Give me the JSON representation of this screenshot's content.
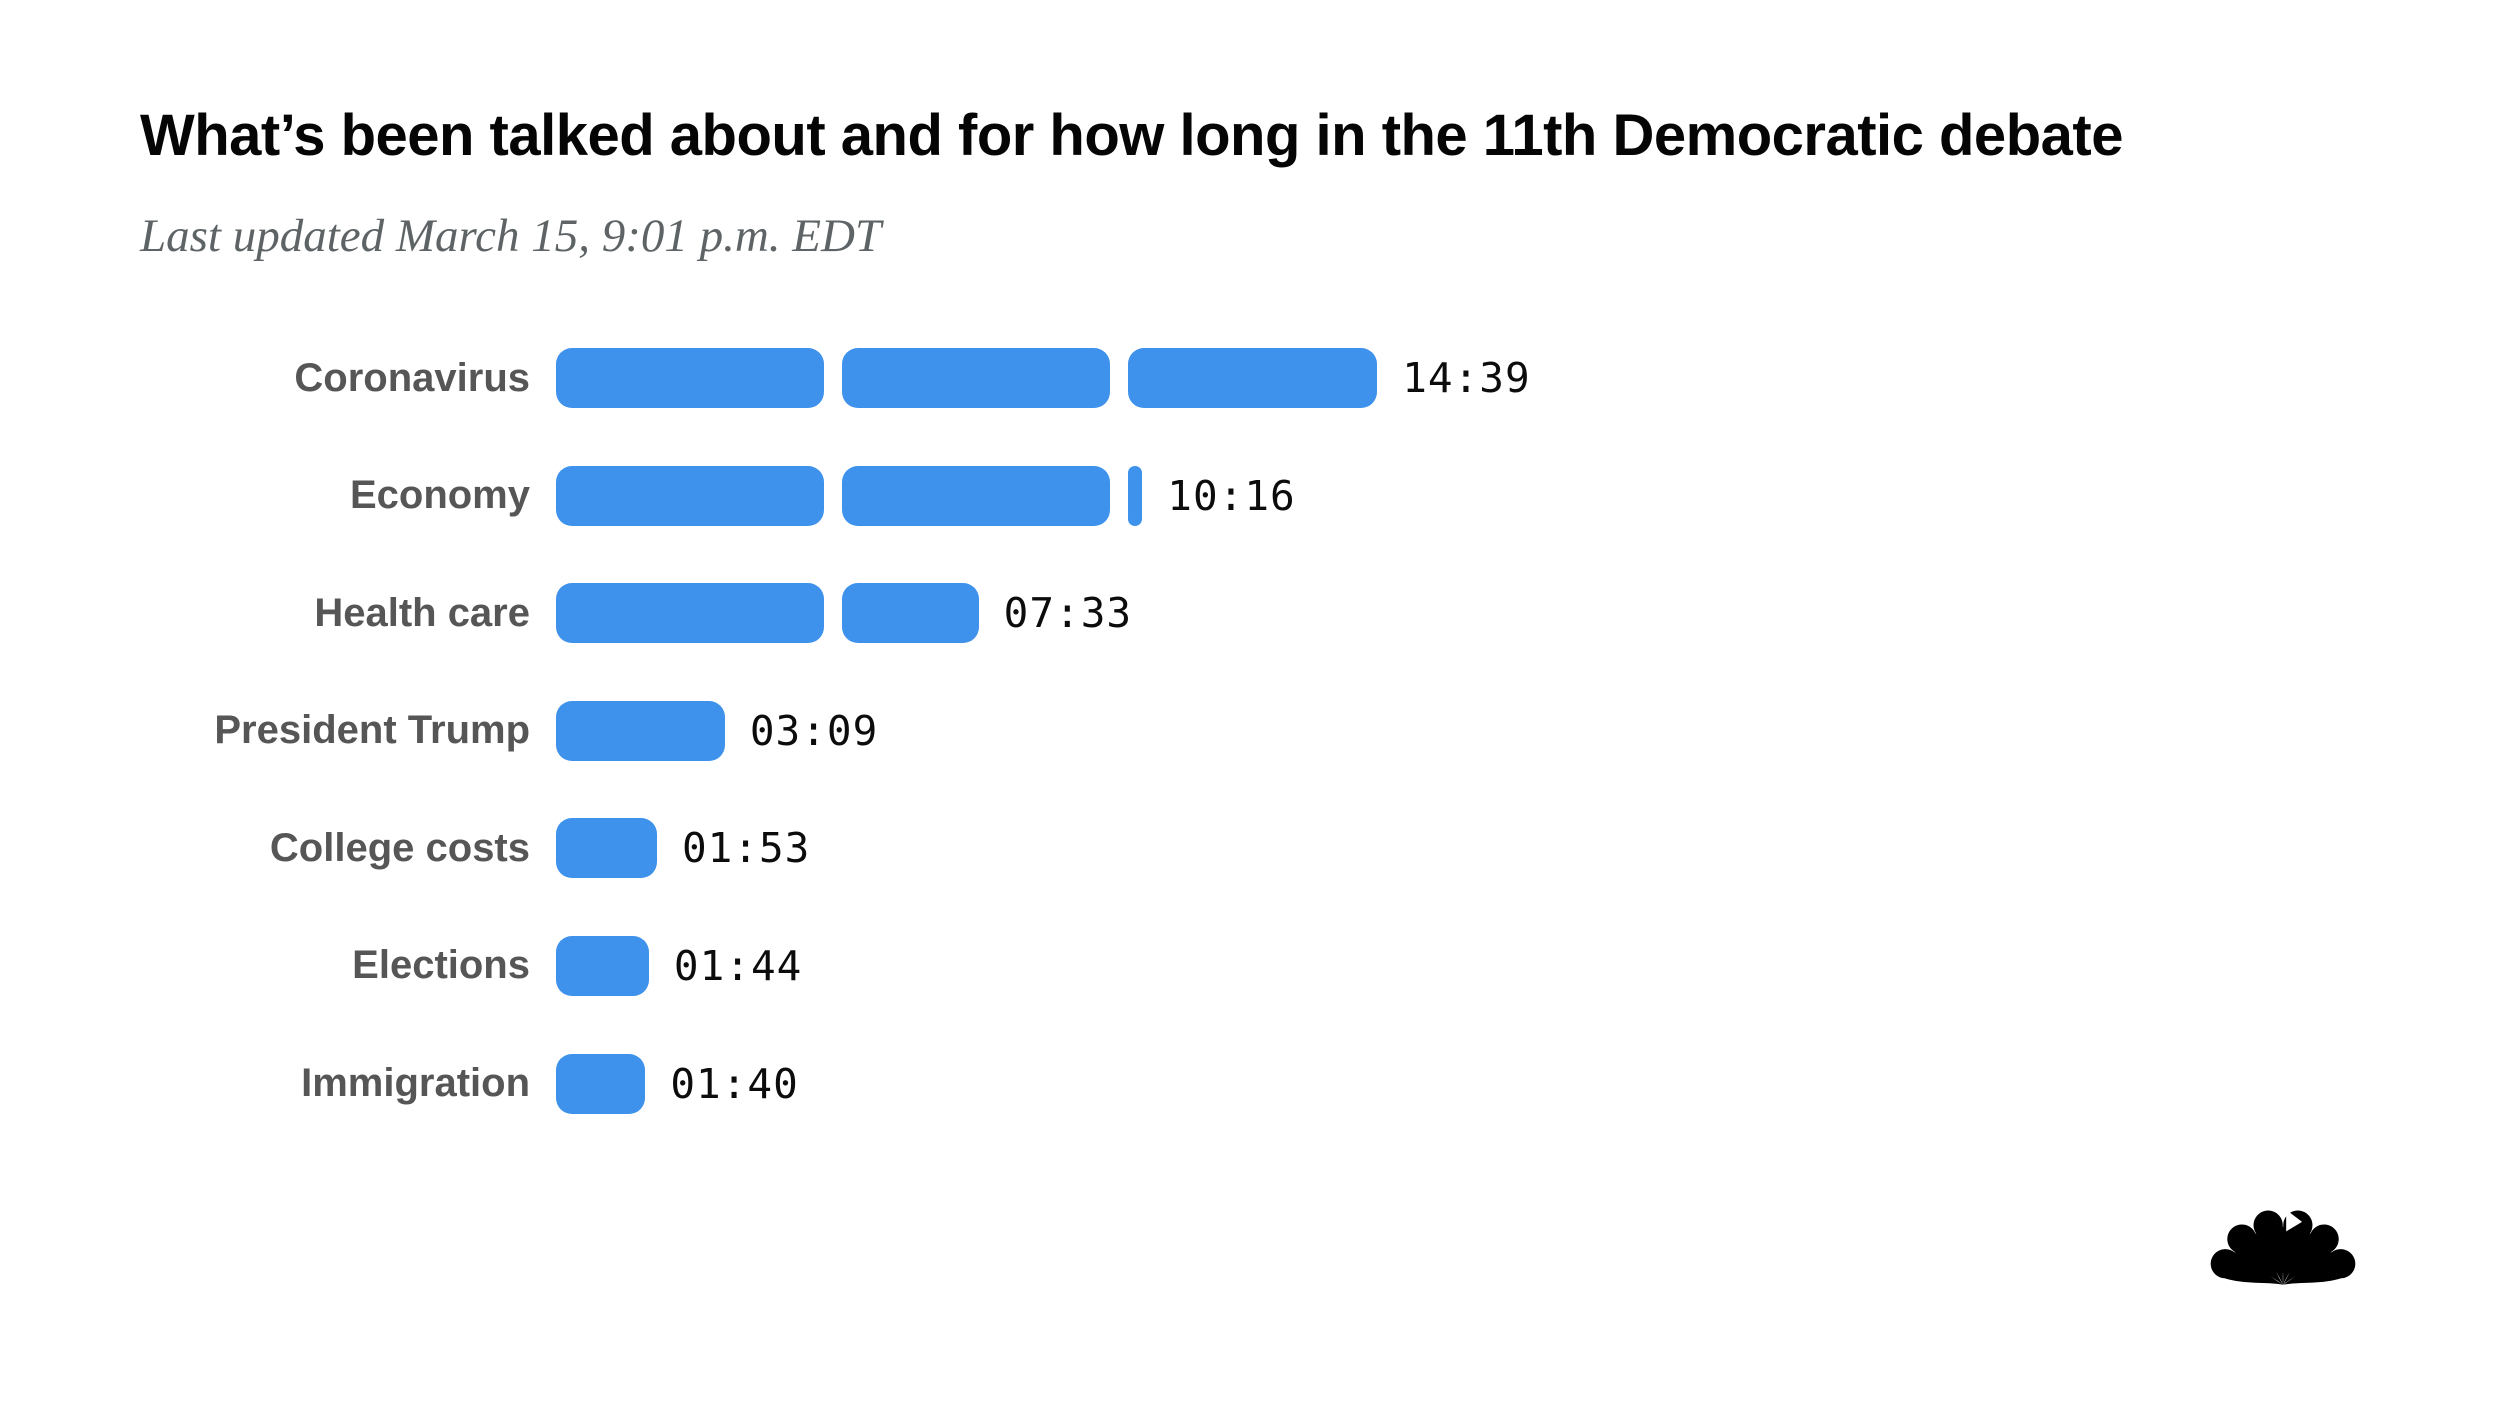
{
  "header": {
    "title": "What’s been talked about and for how long in the 11th Democratic debate",
    "subtitle": "Last updated March 15, 9:01 p.m. EDT"
  },
  "chart_data": {
    "type": "bar",
    "orientation": "horizontal",
    "title": "What’s been talked about and for how long in the 11th Democratic debate",
    "subtitle": "Last updated March 15, 9:01 p.m. EDT",
    "unit": "mm:ss speaking time",
    "segment_unit_seconds": 300,
    "segment_note": "bars drawn as rounded segments of 5 minutes each",
    "categories": [
      "Coronavirus",
      "Economy",
      "Health care",
      "President Trump",
      "College costs",
      "Elections",
      "Immigration"
    ],
    "values": [
      "14:39",
      "10:16",
      "07:33",
      "03:09",
      "01:53",
      "01:44",
      "01:40"
    ],
    "seconds": [
      879,
      616,
      453,
      189,
      113,
      104,
      100
    ],
    "bar_color": "#3e92ec",
    "grid": false,
    "legend": false,
    "value_label_position": "right-of-bar"
  },
  "logo": {
    "name": "nbc-peacock",
    "color": "#000000"
  }
}
